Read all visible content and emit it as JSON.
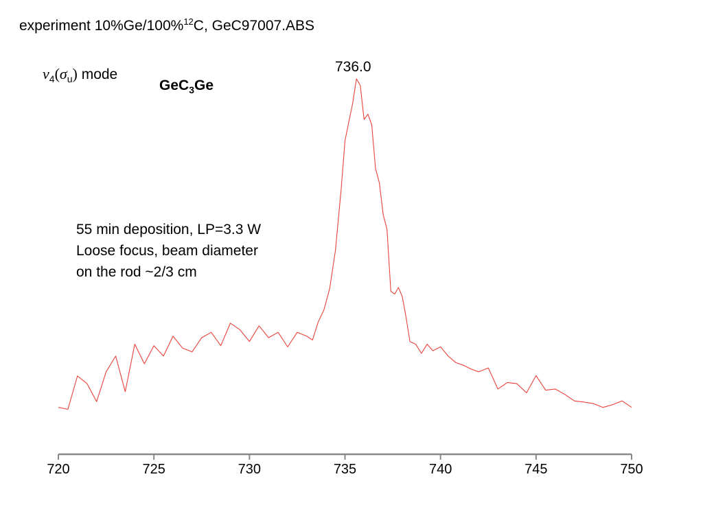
{
  "title": {
    "prefix": "experiment 10%Ge/100%",
    "superscript": "12",
    "suffix": "C, GeC97007.ABS"
  },
  "mode_label": {
    "nu": "ν",
    "nu_sub": "4",
    "open": "(",
    "sigma": "σ",
    "sigma_sub": "u",
    "close": ")",
    "word": " mode"
  },
  "molecule": {
    "part1": "GeC",
    "sub": "3",
    "part2": "Ge"
  },
  "notes": [
    "55 min deposition, LP=3.3 W",
    "Loose focus, beam diameter",
    "on the rod ~2/3 cm"
  ],
  "colors": {
    "trace": "#e8413a",
    "axis": "#888888"
  },
  "chart_data": {
    "type": "line",
    "title": "experiment 10%Ge/100%12C, GeC97007.ABS",
    "xlabel": "",
    "ylabel": "",
    "xlim": [
      720,
      750
    ],
    "ylim": [
      0,
      1
    ],
    "x_ticks": [
      720,
      725,
      730,
      735,
      740,
      745,
      750
    ],
    "x_tick_labels": [
      "720",
      "725",
      "730",
      "735",
      "740",
      "745",
      "750"
    ],
    "grid": false,
    "annotations": [
      {
        "text": "736.0",
        "x": 735.6
      }
    ],
    "series": [
      {
        "name": "",
        "x": [
          720.0,
          720.5,
          721.0,
          721.5,
          722.0,
          722.5,
          723.0,
          723.5,
          724.0,
          724.5,
          725.0,
          725.5,
          726.0,
          726.5,
          727.0,
          727.5,
          728.0,
          728.5,
          729.0,
          729.5,
          730.0,
          730.5,
          731.0,
          731.5,
          732.0,
          732.5,
          733.0,
          733.3,
          733.6,
          733.9,
          734.2,
          734.5,
          734.8,
          735.0,
          735.2,
          735.4,
          735.6,
          735.8,
          736.0,
          736.2,
          736.4,
          736.6,
          736.8,
          737.0,
          737.2,
          737.4,
          737.6,
          737.8,
          738.0,
          738.2,
          738.4,
          738.7,
          739.0,
          739.3,
          739.6,
          740.0,
          740.4,
          740.8,
          741.2,
          741.6,
          742.0,
          742.5,
          743.0,
          743.5,
          744.0,
          744.5,
          745.0,
          745.5,
          746.0,
          746.5,
          747.0,
          747.5,
          748.0,
          748.5,
          749.0,
          749.5,
          750.0
        ],
        "y": [
          0.083,
          0.078,
          0.165,
          0.145,
          0.098,
          0.176,
          0.217,
          0.124,
          0.248,
          0.197,
          0.244,
          0.217,
          0.269,
          0.238,
          0.228,
          0.265,
          0.279,
          0.244,
          0.303,
          0.286,
          0.255,
          0.296,
          0.265,
          0.279,
          0.241,
          0.279,
          0.269,
          0.259,
          0.306,
          0.338,
          0.393,
          0.493,
          0.652,
          0.779,
          0.829,
          0.876,
          0.941,
          0.924,
          0.835,
          0.849,
          0.821,
          0.707,
          0.669,
          0.586,
          0.548,
          0.386,
          0.379,
          0.396,
          0.372,
          0.317,
          0.255,
          0.248,
          0.224,
          0.248,
          0.231,
          0.241,
          0.217,
          0.2,
          0.193,
          0.183,
          0.176,
          0.186,
          0.131,
          0.148,
          0.145,
          0.121,
          0.166,
          0.128,
          0.131,
          0.117,
          0.1,
          0.097,
          0.093,
          0.083,
          0.09,
          0.1,
          0.083
        ]
      }
    ]
  }
}
